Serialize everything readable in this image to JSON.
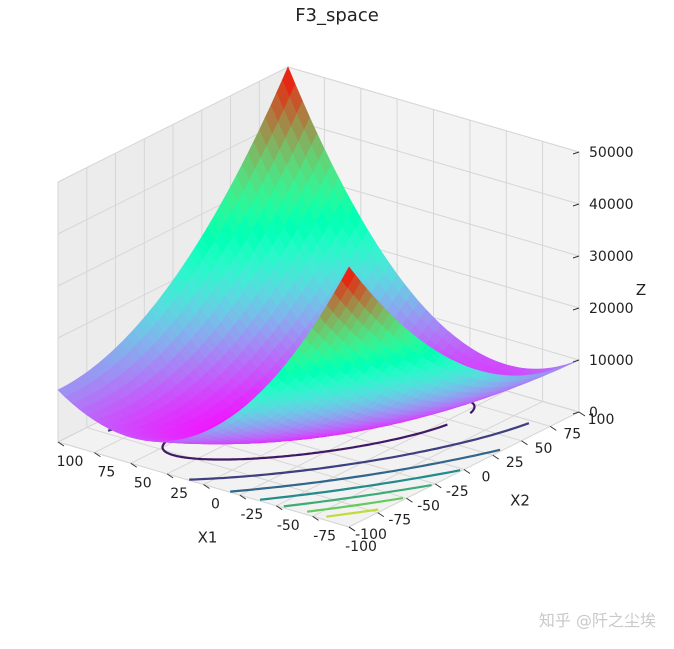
{
  "chart_data": {
    "type": "surface",
    "title": "F3_space",
    "xlabel": "X1",
    "ylabel": "X2",
    "zlabel": "Z",
    "xlim": [
      -100,
      100
    ],
    "ylim": [
      -100,
      100
    ],
    "zlim": [
      0,
      50000
    ],
    "x_ticks": [
      "-100",
      "-75",
      "-50",
      "-25",
      "0",
      "25",
      "50",
      "75",
      "100"
    ],
    "y_ticks": [
      "-100",
      "-75",
      "-50",
      "-25",
      "0",
      "25",
      "50",
      "75",
      "100"
    ],
    "z_ticks": [
      "0",
      "10000",
      "20000",
      "30000",
      "40000",
      "50000"
    ],
    "colormap": "rainbow",
    "contours_on_floor": true,
    "grid": true
  },
  "watermark": "知乎 @阡之尘埃"
}
